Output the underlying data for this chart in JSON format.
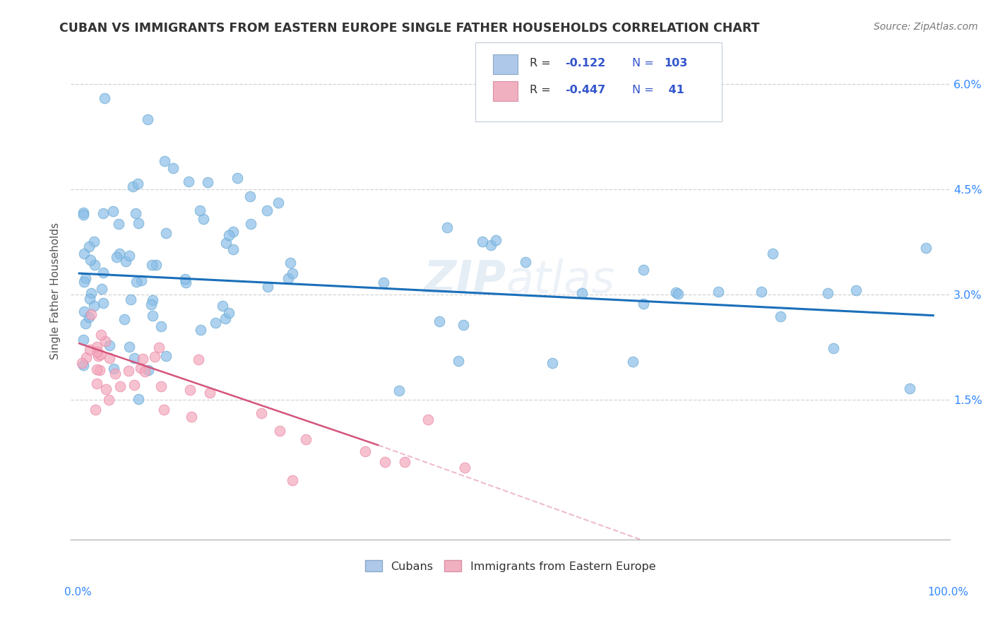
{
  "title": "CUBAN VS IMMIGRANTS FROM EASTERN EUROPE SINGLE FATHER HOUSEHOLDS CORRELATION CHART",
  "source": "Source: ZipAtlas.com",
  "ylabel": "Single Father Households",
  "xlim": [
    0,
    100
  ],
  "ylim": [
    0,
    6.5
  ],
  "yticks": [
    1.5,
    3.0,
    4.5,
    6.0
  ],
  "ytick_labels": [
    "1.5%",
    "3.0%",
    "4.5%",
    "6.0%"
  ],
  "blue_color": "#8bbee8",
  "blue_marker_edge": "#6aaad4",
  "pink_color": "#f4a8bc",
  "pink_marker_edge": "#e888a8",
  "line_blue": "#1a6fba",
  "line_pink": "#d4547a",
  "line_pink_dashed": "#e8a0b8",
  "watermark": "ZIPatlas",
  "legend_box_color": "#f5f8ff",
  "legend_border": "#d0d8e8"
}
